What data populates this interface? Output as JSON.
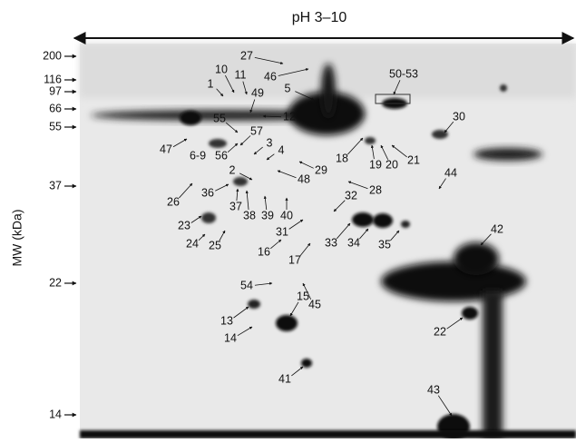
{
  "header": {
    "title": "pH 3–10"
  },
  "axis": {
    "label": "MW (kDa)",
    "markers": [
      200,
      116,
      97,
      66,
      55,
      37,
      22,
      14
    ]
  },
  "spots": [
    "27",
    "46",
    "10",
    "11",
    "1",
    "49",
    "5",
    "50-53",
    "12",
    "55",
    "30",
    "57",
    "6-9",
    "56",
    "47",
    "3",
    "4",
    "18",
    "19",
    "20",
    "21",
    "2",
    "29",
    "48",
    "44",
    "36",
    "37",
    "38",
    "39",
    "40",
    "28",
    "26",
    "32",
    "23",
    "31",
    "24",
    "25",
    "33",
    "34",
    "35",
    "42",
    "16",
    "17",
    "54",
    "45",
    "15",
    "13",
    "14",
    "22",
    "41",
    "43"
  ]
}
